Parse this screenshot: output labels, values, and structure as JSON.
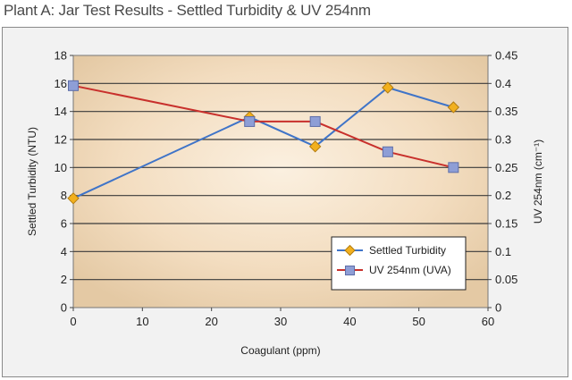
{
  "chart_data": {
    "type": "line",
    "title": "Plant A: Jar Test Results - Settled Turbidity & UV 254nm",
    "xlabel": "Coagulant (ppm)",
    "ylabel": "Settled Turbidity (NTU)",
    "y2label": "UV 254nm (cm⁻¹)",
    "xlim": [
      0,
      60
    ],
    "ylim": [
      0,
      18
    ],
    "y2lim": [
      0,
      0.45
    ],
    "x_ticks": [
      "0",
      "10",
      "20",
      "30",
      "40",
      "50",
      "60"
    ],
    "y_ticks": [
      "0",
      "2",
      "4",
      "6",
      "8",
      "10",
      "12",
      "14",
      "16",
      "18"
    ],
    "y2_ticks": [
      "0",
      "0.05",
      "0.1",
      "0.15",
      "0.2",
      "0.25",
      "0.3",
      "0.35",
      "0.4",
      "0.45"
    ],
    "grid": true,
    "legend_position": "bottom-right",
    "series": [
      {
        "name": "Settled Turbidity",
        "axis": "left",
        "color": "#3f74c8",
        "marker": "diamond",
        "marker_color": "#f2b01e",
        "x": [
          0,
          25.5,
          35,
          45.5,
          55
        ],
        "y": [
          7.8,
          13.6,
          11.5,
          15.7,
          14.3
        ]
      },
      {
        "name": "UV 254nm (UVA)",
        "axis": "right",
        "color": "#c8302c",
        "marker": "square",
        "marker_color": "#8e9ed6",
        "x": [
          0,
          25.5,
          35,
          45.5,
          55
        ],
        "y": [
          0.396,
          0.332,
          0.332,
          0.278,
          0.25
        ]
      }
    ]
  }
}
